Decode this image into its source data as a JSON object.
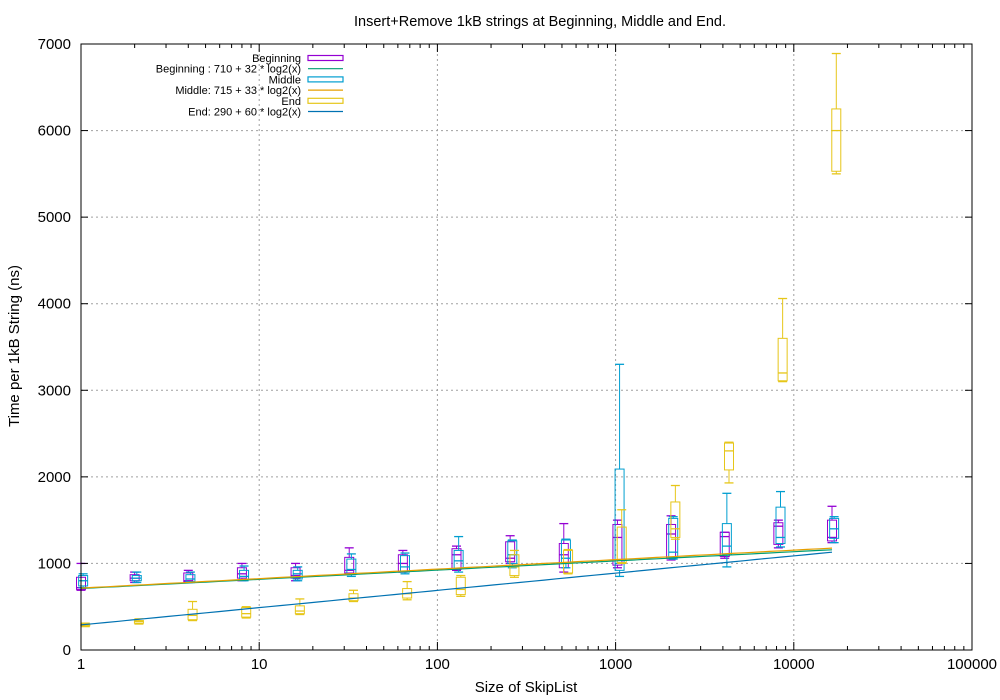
{
  "chart_data": {
    "type": "box",
    "title": "Insert+Remove 1kB strings at Beginning, Middle and End.",
    "xlabel": "Size of SkipList",
    "ylabel": "Time per 1kB String (ns)",
    "x_scale": "log10",
    "xlim": [
      1,
      100000
    ],
    "ylim": [
      0,
      7000
    ],
    "x_ticks": [
      1,
      10,
      100,
      1000,
      10000,
      100000
    ],
    "x_tick_labels": [
      "1",
      "10",
      "100",
      "1000",
      "10000",
      "100000"
    ],
    "y_ticks": [
      0,
      1000,
      2000,
      3000,
      4000,
      5000,
      6000,
      7000
    ],
    "y_tick_labels": [
      "0",
      "1000",
      "2000",
      "3000",
      "4000",
      "5000",
      "6000",
      "7000"
    ],
    "grid": true,
    "legend_position": "top-left",
    "box_series": [
      {
        "name": "Beginning",
        "color": "#9400d3",
        "x": [
          1,
          2,
          4,
          8,
          16,
          32,
          64,
          128,
          256,
          512,
          1024,
          2048,
          4096,
          8192,
          16384
        ],
        "min": [
          690,
          780,
          780,
          800,
          800,
          880,
          900,
          920,
          1000,
          900,
          950,
          1040,
          1060,
          1180,
          1240
        ],
        "q1": [
          700,
          800,
          790,
          830,
          830,
          890,
          910,
          930,
          1020,
          950,
          980,
          1060,
          1080,
          1220,
          1260
        ],
        "median": [
          720,
          830,
          800,
          880,
          860,
          920,
          1000,
          1100,
          1060,
          1100,
          1300,
          1340,
          1310,
          1430,
          1300
        ],
        "q3": [
          840,
          870,
          890,
          950,
          950,
          1070,
          1100,
          1170,
          1250,
          1230,
          1450,
          1450,
          1360,
          1470,
          1500
        ],
        "max": [
          1000,
          900,
          920,
          1000,
          1000,
          1180,
          1150,
          1200,
          1320,
          1460,
          1500,
          1550,
          1360,
          1500,
          1660
        ]
      },
      {
        "name": "Middle",
        "color": "#009ed0",
        "x": [
          1,
          2,
          4,
          8,
          16,
          32,
          64,
          128,
          256,
          512,
          1024,
          2048,
          4096,
          8192,
          16384
        ],
        "min": [
          720,
          780,
          780,
          800,
          800,
          850,
          880,
          900,
          950,
          950,
          850,
          1050,
          960,
          1190,
          1240
        ],
        "q1": [
          740,
          800,
          790,
          810,
          820,
          870,
          900,
          940,
          1000,
          1000,
          920,
          1070,
          1100,
          1230,
          1290
        ],
        "median": [
          800,
          830,
          820,
          850,
          880,
          930,
          960,
          1030,
          1100,
          1060,
          1000,
          1130,
          1200,
          1300,
          1400
        ],
        "q3": [
          860,
          860,
          870,
          920,
          920,
          1050,
          1090,
          1150,
          1260,
          1270,
          2090,
          1520,
          1460,
          1650,
          1520
        ],
        "max": [
          880,
          900,
          900,
          970,
          960,
          1110,
          1120,
          1310,
          1270,
          1280,
          3300,
          1540,
          1810,
          1830,
          1540
        ]
      },
      {
        "name": "End",
        "color": "#e6c619",
        "x": [
          1,
          2,
          4,
          8,
          16,
          32,
          64,
          128,
          256,
          512,
          1024,
          2048,
          4096,
          8192,
          16384
        ],
        "min": [
          270,
          300,
          340,
          370,
          410,
          560,
          580,
          620,
          840,
          880,
          1000,
          1280,
          1930,
          3100,
          5500
        ],
        "q1": [
          280,
          310,
          350,
          380,
          420,
          570,
          600,
          640,
          860,
          890,
          1010,
          1300,
          2080,
          3110,
          5530
        ],
        "median": [
          290,
          330,
          400,
          420,
          450,
          600,
          650,
          700,
          960,
          1000,
          1040,
          1400,
          2300,
          3200,
          6000
        ],
        "q3": [
          300,
          340,
          470,
          490,
          510,
          650,
          710,
          840,
          1100,
          1150,
          1420,
          1710,
          2390,
          3600,
          6250
        ],
        "max": [
          310,
          360,
          560,
          500,
          590,
          690,
          790,
          860,
          1150,
          1160,
          1620,
          1900,
          2400,
          4060,
          6890
        ]
      }
    ],
    "fit_lines": [
      {
        "name": "Beginning : 710 + 32 * log2(x)",
        "a": 710,
        "b": 32,
        "color": "#009e73",
        "x_range": [
          1,
          16384
        ]
      },
      {
        "name": "Middle: 715 + 33 * log2(x)",
        "a": 715,
        "b": 33,
        "color": "#e69f00",
        "x_range": [
          1,
          16384
        ]
      },
      {
        "name": "End: 290 + 60 * log2(x)",
        "a": 290,
        "b": 60,
        "color": "#0072b2",
        "x_range": [
          1,
          16384
        ]
      }
    ],
    "legend_order": [
      {
        "label": "Beginning",
        "kind": "box",
        "color": "#9400d3"
      },
      {
        "label": "Beginning : 710 + 32 * log2(x)",
        "kind": "line",
        "color": "#009e73"
      },
      {
        "label": "Middle",
        "kind": "box",
        "color": "#009ed0"
      },
      {
        "label": "Middle: 715 + 33 * log2(x)",
        "kind": "line",
        "color": "#e69f00"
      },
      {
        "label": "End",
        "kind": "box",
        "color": "#e6c619"
      },
      {
        "label": "End: 290 + 60 * log2(x)",
        "kind": "line",
        "color": "#0072b2"
      }
    ]
  }
}
